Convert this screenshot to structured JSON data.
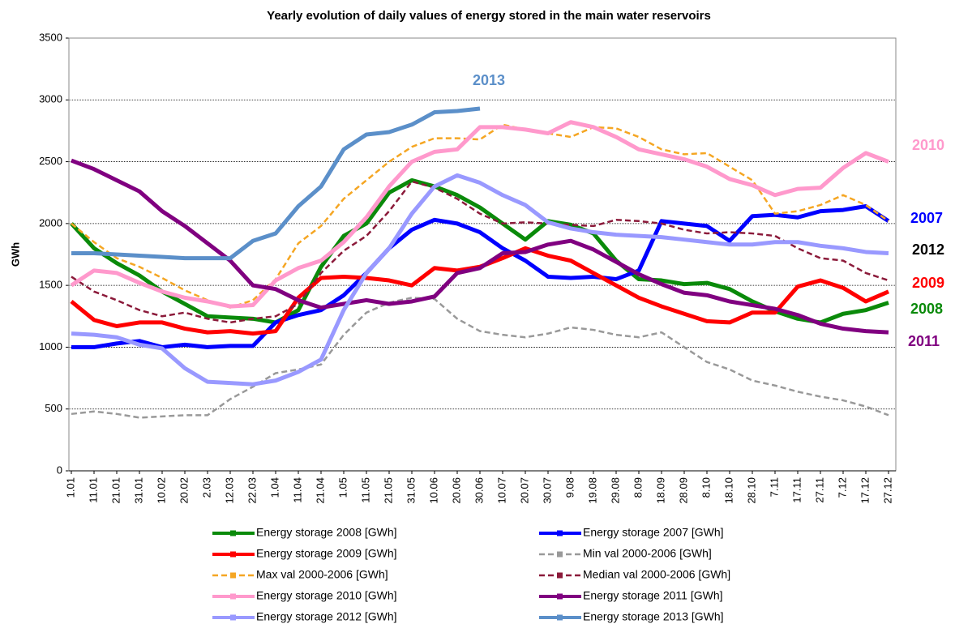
{
  "chart_data": {
    "type": "line",
    "title": "Yearly evolution of daily values of energy stored in the main water reservoirs",
    "ylabel": "GWh",
    "categories": [
      "1.01",
      "11.01",
      "21.01",
      "31.01",
      "10.02",
      "20.02",
      "2.03",
      "12.03",
      "22.03",
      "1.04",
      "11.04",
      "21.04",
      "1.05",
      "11.05",
      "21.05",
      "31.05",
      "10.06",
      "20.06",
      "30.06",
      "10.07",
      "20.07",
      "30.07",
      "9.08",
      "19.08",
      "29.08",
      "8.09",
      "18.09",
      "28.09",
      "8.10",
      "18.10",
      "28.10",
      "7.11",
      "17.11",
      "27.11",
      "7.12",
      "17.12",
      "27.12"
    ],
    "ylim": [
      0,
      3500
    ],
    "yticks": [
      0,
      500,
      1000,
      1500,
      2000,
      2500,
      3000,
      3500
    ],
    "grid": true,
    "series": [
      {
        "name": "Energy storage 2008 [GWh]",
        "color": "#0a8a0a",
        "style": "solid",
        "values": [
          2000,
          1800,
          1680,
          1580,
          1450,
          1350,
          1250,
          1240,
          1230,
          1200,
          1300,
          1650,
          1900,
          2000,
          2250,
          2350,
          2300,
          2230,
          2130,
          2000,
          1870,
          2020,
          1990,
          1920,
          1700,
          1550,
          1540,
          1510,
          1520,
          1470,
          1370,
          1290,
          1230,
          1200,
          1270,
          1300,
          1360
        ]
      },
      {
        "name": "Energy storage 2007 [GWh]",
        "color": "#0000ff",
        "style": "solid",
        "values": [
          1000,
          1000,
          1030,
          1050,
          1000,
          1020,
          1000,
          1010,
          1010,
          1200,
          1260,
          1300,
          1420,
          1600,
          1800,
          1950,
          2030,
          2000,
          1930,
          1800,
          1700,
          1570,
          1560,
          1570,
          1550,
          1620,
          2020,
          2000,
          1980,
          1860,
          2060,
          2070,
          2050,
          2100,
          2110,
          2140,
          2020
        ]
      },
      {
        "name": "Energy storage 2009 [GWh]",
        "color": "#ff0000",
        "style": "solid",
        "values": [
          1370,
          1220,
          1170,
          1200,
          1200,
          1150,
          1120,
          1130,
          1110,
          1130,
          1400,
          1560,
          1570,
          1560,
          1540,
          1500,
          1640,
          1620,
          1650,
          1720,
          1800,
          1740,
          1700,
          1600,
          1500,
          1400,
          1330,
          1270,
          1210,
          1200,
          1280,
          1280,
          1490,
          1540,
          1480,
          1370,
          1450
        ]
      },
      {
        "name": "Min val 2000-2006 [GWh]",
        "color": "#999999",
        "style": "dashed",
        "values": [
          460,
          480,
          460,
          430,
          440,
          450,
          450,
          580,
          680,
          790,
          820,
          860,
          1100,
          1280,
          1360,
          1400,
          1390,
          1230,
          1130,
          1100,
          1080,
          1110,
          1160,
          1140,
          1100,
          1080,
          1120,
          1000,
          880,
          820,
          730,
          690,
          640,
          600,
          570,
          520,
          450
        ]
      },
      {
        "name": "Max val 2000-2006 [GWh]",
        "color": "#f5a623",
        "style": "dashed",
        "values": [
          2000,
          1850,
          1720,
          1650,
          1560,
          1460,
          1380,
          1320,
          1380,
          1550,
          1840,
          1980,
          2200,
          2350,
          2500,
          2620,
          2690,
          2690,
          2680,
          2800,
          2760,
          2730,
          2700,
          2780,
          2770,
          2700,
          2600,
          2560,
          2570,
          2460,
          2350,
          2080,
          2100,
          2150,
          2230,
          2150,
          2020
        ]
      },
      {
        "name": "Median val 2000-2006 [GWh]",
        "color": "#8b1a3a",
        "style": "dashed",
        "values": [
          1570,
          1450,
          1380,
          1300,
          1250,
          1280,
          1230,
          1200,
          1230,
          1250,
          1350,
          1600,
          1780,
          1900,
          2100,
          2340,
          2290,
          2200,
          2080,
          2000,
          2010,
          2000,
          1990,
          1980,
          2030,
          2020,
          2000,
          1950,
          1920,
          1930,
          1920,
          1900,
          1800,
          1720,
          1700,
          1600,
          1540
        ]
      },
      {
        "name": "Energy storage 2010 [GWh]",
        "color": "#ff99cc",
        "style": "solid",
        "values": [
          1500,
          1620,
          1600,
          1520,
          1450,
          1400,
          1370,
          1330,
          1340,
          1540,
          1640,
          1700,
          1850,
          2050,
          2300,
          2500,
          2580,
          2600,
          2780,
          2780,
          2760,
          2730,
          2820,
          2780,
          2700,
          2600,
          2560,
          2520,
          2460,
          2360,
          2310,
          2230,
          2280,
          2290,
          2450,
          2570,
          2500
        ]
      },
      {
        "name": "Energy storage 2011 [GWh]",
        "color": "#800080",
        "style": "solid",
        "values": [
          2510,
          2440,
          2350,
          2260,
          2100,
          1980,
          1840,
          1700,
          1500,
          1470,
          1380,
          1320,
          1350,
          1380,
          1350,
          1370,
          1410,
          1600,
          1640,
          1760,
          1770,
          1830,
          1860,
          1790,
          1690,
          1590,
          1510,
          1440,
          1420,
          1370,
          1340,
          1310,
          1260,
          1190,
          1150,
          1130,
          1120
        ]
      },
      {
        "name": "Energy storage 2012 [GWh]",
        "color": "#9999ff",
        "style": "solid",
        "values": [
          1110,
          1100,
          1080,
          1020,
          990,
          830,
          720,
          710,
          700,
          730,
          800,
          900,
          1300,
          1600,
          1800,
          2080,
          2300,
          2390,
          2330,
          2230,
          2150,
          2010,
          1960,
          1930,
          1910,
          1900,
          1890,
          1870,
          1850,
          1830,
          1830,
          1850,
          1850,
          1820,
          1800,
          1770,
          1760
        ]
      },
      {
        "name": "Energy storage 2013 [GWh]",
        "color": "#5b8fc9",
        "style": "solid",
        "values": [
          1760,
          1760,
          1750,
          1740,
          1730,
          1720,
          1720,
          1720,
          1860,
          1920,
          2140,
          2300,
          2600,
          2720,
          2740,
          2800,
          2900,
          2910,
          2930,
          null,
          null,
          null,
          null,
          null,
          null,
          null,
          null,
          null,
          null,
          null,
          null,
          null,
          null,
          null,
          null,
          null,
          null
        ]
      }
    ],
    "annotations": [
      {
        "text": "2013",
        "color": "#5b8fc9"
      },
      {
        "text": "2010",
        "color": "#ff99cc"
      },
      {
        "text": "2007",
        "color": "#0000ff"
      },
      {
        "text": "2012",
        "color": "#000000"
      },
      {
        "text": "2009",
        "color": "#ff0000"
      },
      {
        "text": "2008",
        "color": "#0a8a0a"
      },
      {
        "text": "2011",
        "color": "#800080"
      }
    ]
  }
}
